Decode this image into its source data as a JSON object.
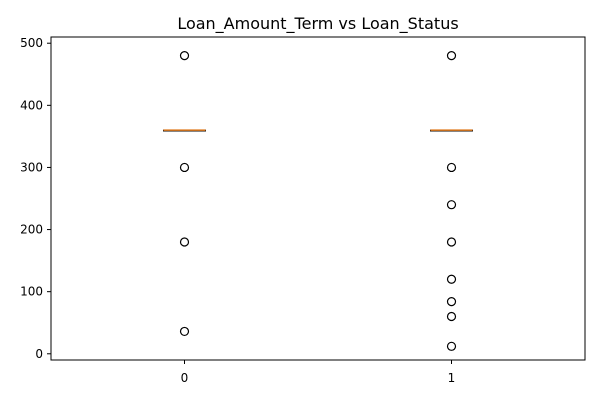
{
  "chart_data": {
    "type": "boxplot",
    "title": "Loan_Amount_Term vs Loan_Status",
    "xlabel": "",
    "ylabel": "",
    "categories": [
      "0",
      "1"
    ],
    "ylim": [
      -10,
      510
    ],
    "yticks": [
      0,
      100,
      200,
      300,
      400,
      500
    ],
    "grid": false,
    "series": [
      {
        "category": "0",
        "median": 360,
        "q1": 360,
        "q3": 360,
        "whisker_low": 360,
        "whisker_high": 360,
        "outliers": [
          480,
          300,
          180,
          36
        ]
      },
      {
        "category": "1",
        "median": 360,
        "q1": 360,
        "q3": 360,
        "whisker_low": 360,
        "whisker_high": 360,
        "outliers": [
          480,
          300,
          240,
          180,
          120,
          84,
          60,
          12
        ]
      }
    ],
    "colors": {
      "median": "#e07b1f",
      "box": "#000000",
      "outlier": "#000000",
      "axis": "#000000"
    }
  }
}
